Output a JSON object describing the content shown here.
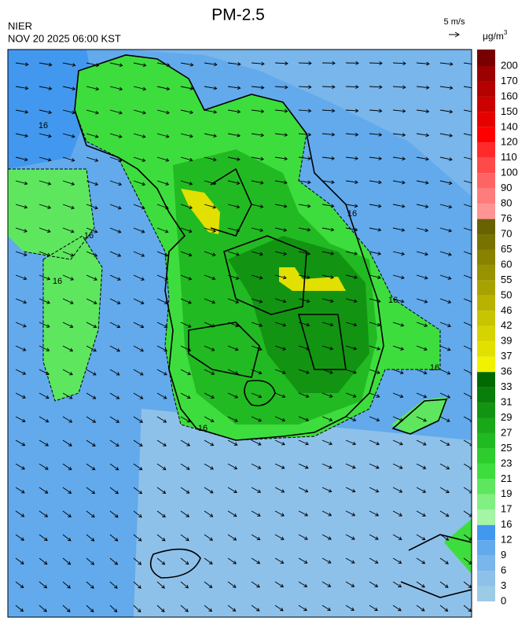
{
  "header": {
    "title": "PM-2.5",
    "agency": "NIER",
    "timestamp": "NOV 20 2025 06:00 KST",
    "wind_scale": "5 m/s"
  },
  "map": {
    "contour_labels": [
      "16",
      "16",
      "16",
      "16",
      "16",
      "16",
      "16"
    ]
  },
  "colorbar": {
    "unit": "μg/m",
    "unit_superscript": "3",
    "ticks": [
      0,
      3,
      6,
      9,
      12,
      16,
      17,
      19,
      21,
      23,
      25,
      27,
      29,
      31,
      33,
      36,
      37,
      39,
      42,
      46,
      50,
      55,
      60,
      65,
      70,
      76,
      80,
      90,
      100,
      110,
      120,
      140,
      150,
      160,
      170,
      200
    ],
    "colors": [
      "#9ccbe6",
      "#8ec1ea",
      "#78b6ec",
      "#62aaec",
      "#4298ee",
      "#a4f5a4",
      "#82ef82",
      "#5ee75e",
      "#3edd3e",
      "#2ccd2c",
      "#22ba22",
      "#1aa81a",
      "#129412",
      "#0a7e0a",
      "#006a00",
      "#f2f200",
      "#e2e000",
      "#d6d400",
      "#c8c400",
      "#b8b200",
      "#a8a200",
      "#989200",
      "#888200",
      "#787200",
      "#686200",
      "#ff9494",
      "#ff7c7c",
      "#ff6464",
      "#ff4a4a",
      "#ff2a2a",
      "#ff0000",
      "#e60000",
      "#cc0000",
      "#b40000",
      "#9c0000",
      "#780000"
    ]
  }
}
